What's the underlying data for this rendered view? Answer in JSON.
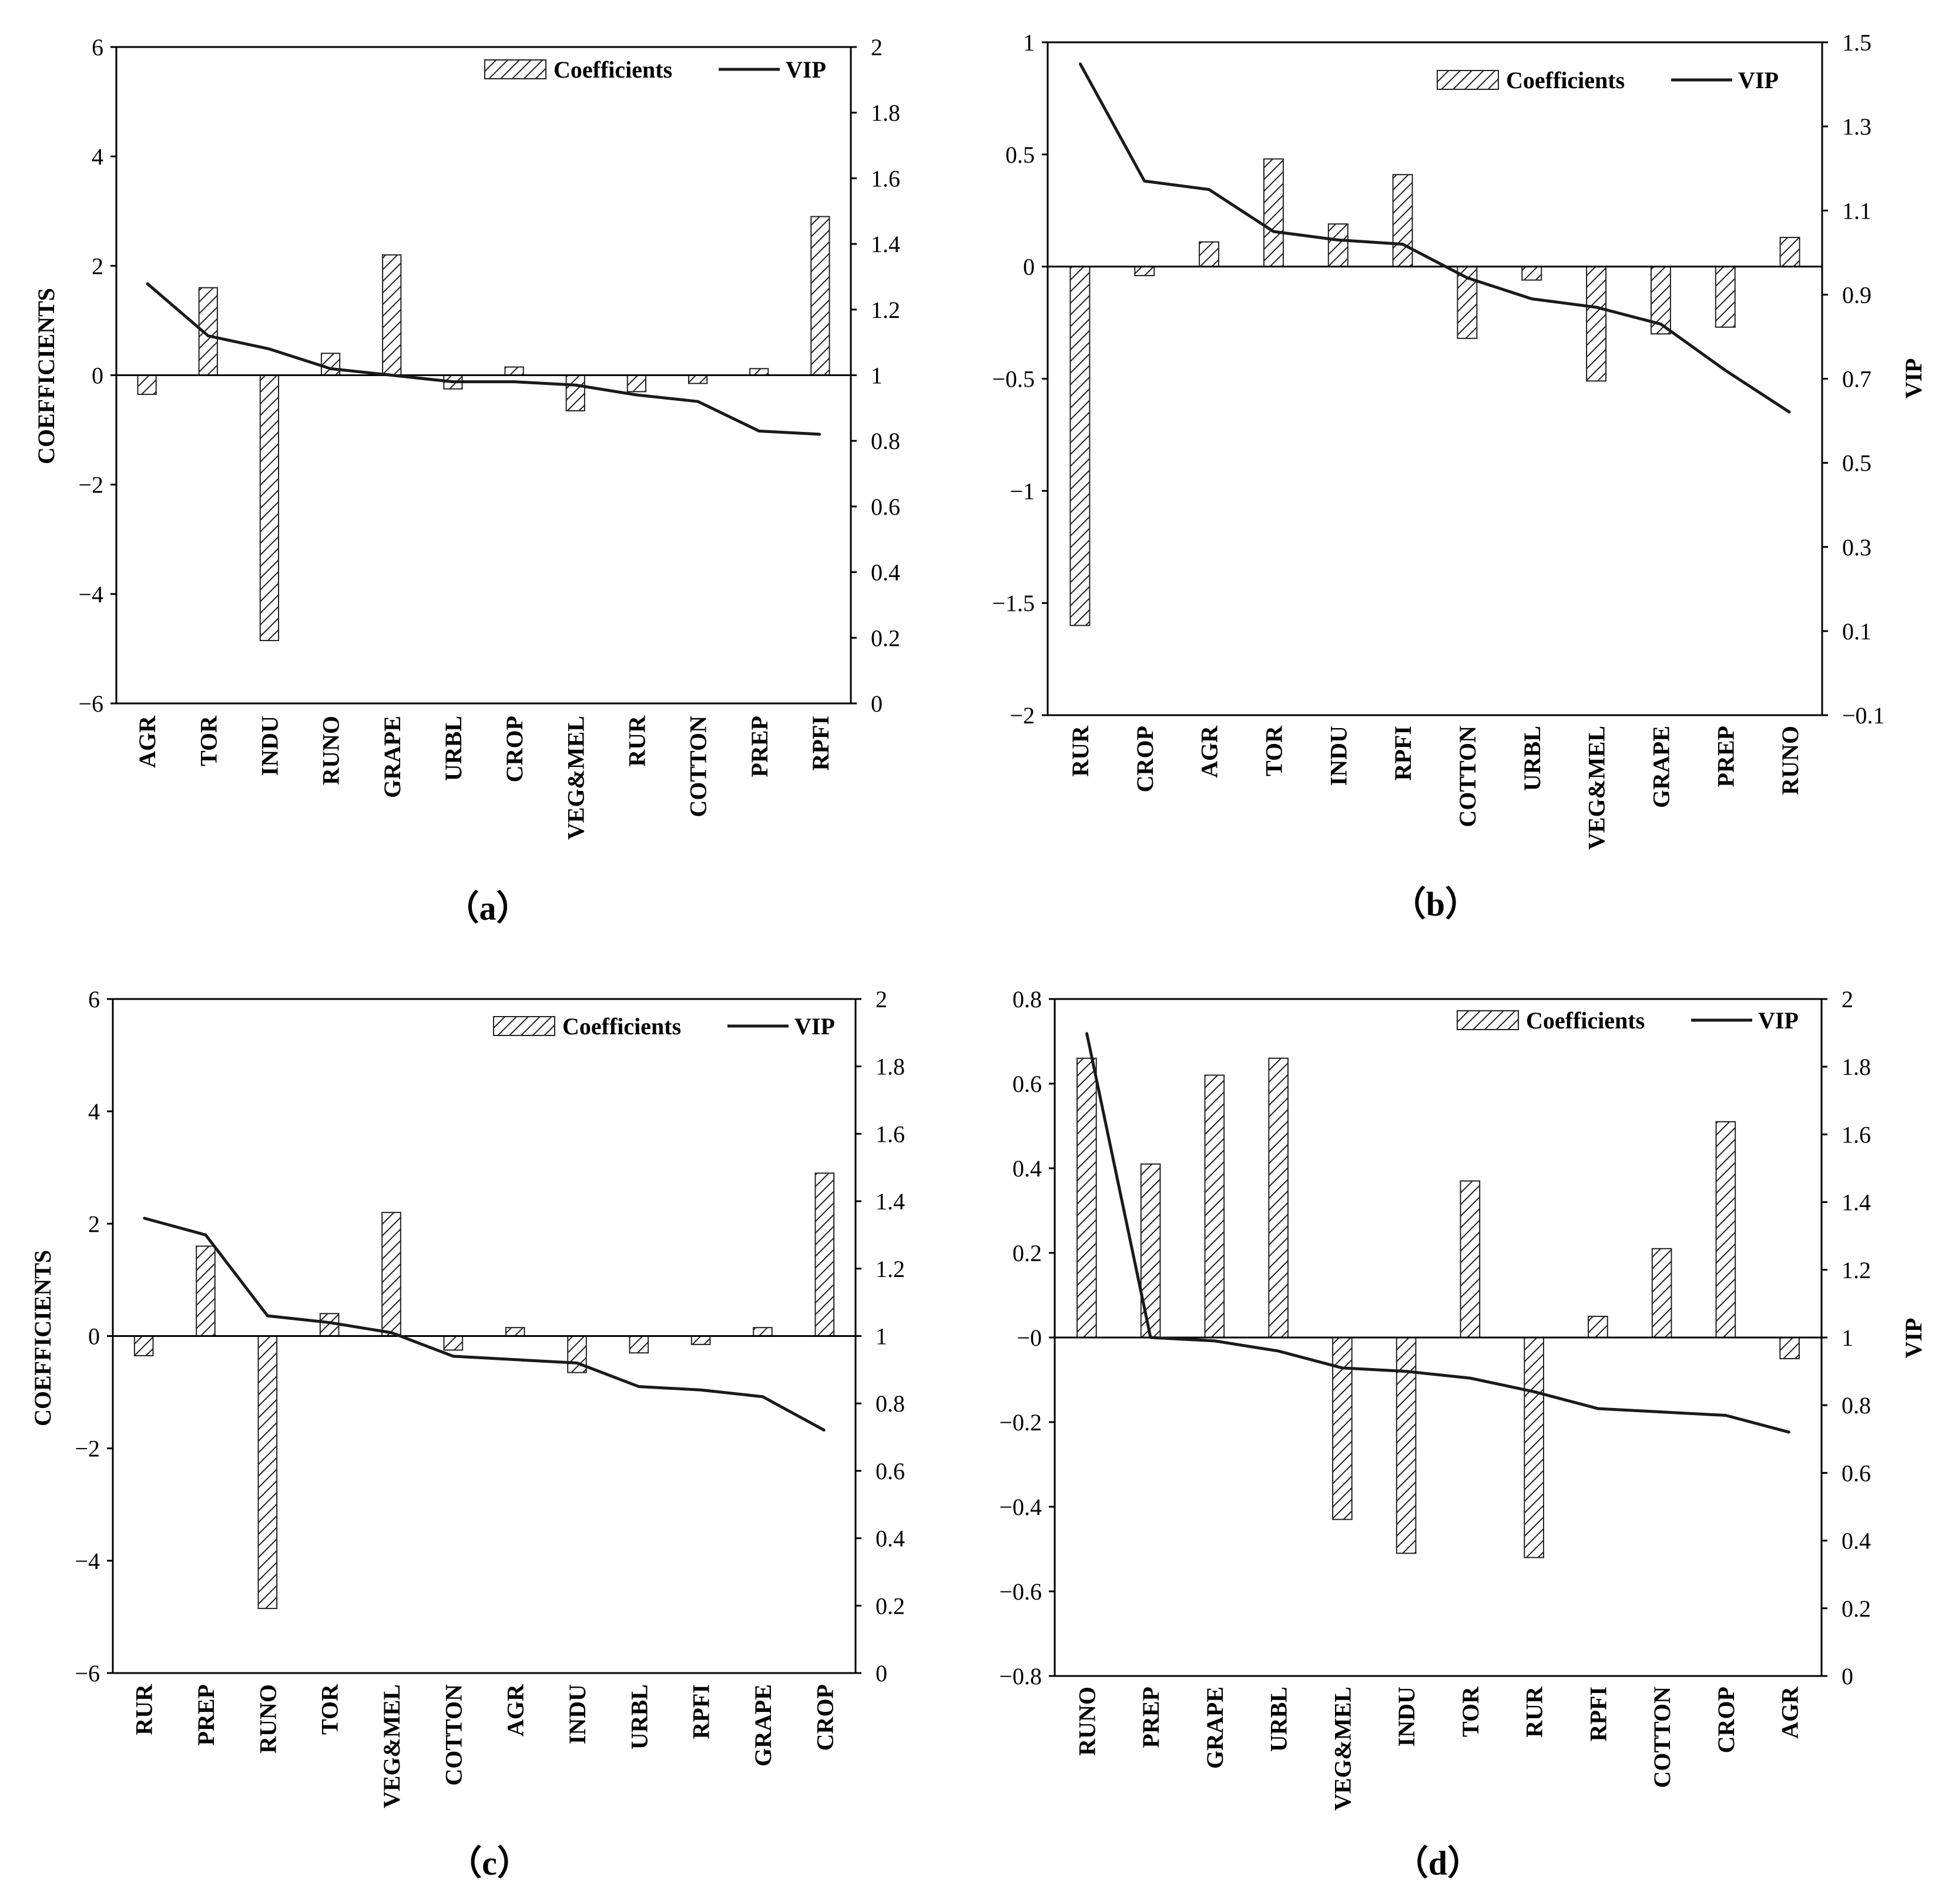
{
  "legend": {
    "coefficients": "Coefficients",
    "vip": "VIP"
  },
  "colors": {
    "bar_stroke": "#222222",
    "hatch": "#222222",
    "line": "#1a1a1a",
    "axis": "#000000"
  },
  "chart_data": [
    {
      "type": "bar+line",
      "panel_label": "（a）",
      "categories": [
        "AGR",
        "TOR",
        "INDU",
        "RUNO",
        "GRAPE",
        "URBL",
        "CROP",
        "VEG&MEL",
        "RUR",
        "COTTON",
        "PREP",
        "RPFI"
      ],
      "ylabel": "COEFFICIENTS",
      "y2label": "",
      "ylim": [
        -6,
        6
      ],
      "yticks": [
        -6,
        -4,
        -2,
        0,
        2,
        4,
        6
      ],
      "ytick_labels": [
        "−6",
        "−4",
        "−2",
        "0",
        "2",
        "4",
        "6"
      ],
      "y2lim": [
        0,
        2
      ],
      "y2ticks": [
        0,
        0.2,
        0.4,
        0.6,
        0.8,
        1,
        1.2,
        1.4,
        1.6,
        1.8,
        2
      ],
      "y2tick_labels": [
        "0",
        "0.2",
        "0.4",
        "0.6",
        "0.8",
        "1",
        "1.2",
        "1.4",
        "1.6",
        "1.8",
        "2"
      ],
      "series": [
        {
          "name": "Coefficients",
          "kind": "bar",
          "axis": "left",
          "values": [
            -0.35,
            1.6,
            -4.85,
            0.4,
            2.2,
            -0.25,
            0.15,
            -0.65,
            -0.3,
            -0.15,
            0.12,
            2.9
          ]
        },
        {
          "name": "VIP",
          "kind": "line",
          "axis": "right",
          "values": [
            1.28,
            1.12,
            1.08,
            1.02,
            1.0,
            0.98,
            0.98,
            0.97,
            0.94,
            0.92,
            0.83,
            0.82
          ]
        }
      ]
    },
    {
      "type": "bar+line",
      "panel_label": "（b）",
      "categories": [
        "RUR",
        "CROP",
        "AGR",
        "TOR",
        "INDU",
        "RPFI",
        "COTTON",
        "URBL",
        "VEG&MEL",
        "GRAPE",
        "PREP",
        "RUNO"
      ],
      "ylabel": "",
      "y2label": "VIP",
      "ylim": [
        -2,
        1
      ],
      "yticks": [
        -2,
        -1.5,
        -1,
        -0.5,
        0,
        0.5,
        1
      ],
      "ytick_labels": [
        "−2",
        "−1.5",
        "−1",
        "−0.5",
        "0",
        "0.5",
        "1"
      ],
      "y2lim": [
        -0.1,
        1.5
      ],
      "y2ticks": [
        -0.1,
        0.1,
        0.3,
        0.5,
        0.7,
        0.9,
        1.1,
        1.3,
        1.5
      ],
      "y2tick_labels": [
        "−0.1",
        "0.1",
        "0.3",
        "0.5",
        "0.7",
        "0.9",
        "1.1",
        "1.3",
        "1.5"
      ],
      "series": [
        {
          "name": "Coefficients",
          "kind": "bar",
          "axis": "left",
          "values": [
            -1.6,
            -0.04,
            0.11,
            0.48,
            0.19,
            0.41,
            -0.32,
            -0.06,
            -0.51,
            -0.3,
            -0.27,
            0.13
          ]
        },
        {
          "name": "VIP",
          "kind": "line",
          "axis": "right",
          "values": [
            1.45,
            1.17,
            1.15,
            1.05,
            1.03,
            1.02,
            0.94,
            0.89,
            0.87,
            0.83,
            0.72,
            0.62
          ]
        }
      ]
    },
    {
      "type": "bar+line",
      "panel_label": "（c）",
      "categories": [
        "RUR",
        "PREP",
        "RUNO",
        "TOR",
        "VEG&MEL",
        "COTTON",
        "AGR",
        "INDU",
        "URBL",
        "RPFI",
        "GRAPE",
        "CROP"
      ],
      "ylabel": "COEFFICIENTS",
      "y2label": "",
      "ylim": [
        -6,
        6
      ],
      "yticks": [
        -6,
        -4,
        -2,
        0,
        2,
        4,
        6
      ],
      "ytick_labels": [
        "−6",
        "−4",
        "−2",
        "0",
        "2",
        "4",
        "6"
      ],
      "y2lim": [
        0,
        2
      ],
      "y2ticks": [
        0,
        0.2,
        0.4,
        0.6,
        0.8,
        1,
        1.2,
        1.4,
        1.6,
        1.8,
        2
      ],
      "y2tick_labels": [
        "0",
        "0.2",
        "0.4",
        "0.6",
        "0.8",
        "1",
        "1.2",
        "1.4",
        "1.6",
        "1.8",
        "2"
      ],
      "series": [
        {
          "name": "Coefficients",
          "kind": "bar",
          "axis": "left",
          "values": [
            -0.35,
            1.6,
            -4.85,
            0.4,
            2.2,
            -0.25,
            0.15,
            -0.65,
            -0.3,
            -0.15,
            0.15,
            2.9
          ]
        },
        {
          "name": "VIP",
          "kind": "line",
          "axis": "right",
          "values": [
            1.35,
            1.3,
            1.06,
            1.04,
            1.01,
            0.94,
            0.93,
            0.92,
            0.85,
            0.84,
            0.82,
            0.72
          ]
        }
      ]
    },
    {
      "type": "bar+line",
      "panel_label": "（d）",
      "categories": [
        "RUNO",
        "PREP",
        "GRAPE",
        "URBL",
        "VEG&MEL",
        "INDU",
        "TOR",
        "RUR",
        "RPFI",
        "COTTON",
        "CROP",
        "AGR"
      ],
      "ylabel": "",
      "y2label": "VIP",
      "ylim": [
        -0.8,
        0.8
      ],
      "yticks": [
        -0.8,
        -0.6,
        -0.4,
        -0.2,
        0,
        0.2,
        0.4,
        0.6,
        0.8
      ],
      "ytick_labels": [
        "−0.8",
        "−0.6",
        "−0.4",
        "−0.2",
        "−0",
        "0.2",
        "0.4",
        "0.6",
        "0.8"
      ],
      "y2lim": [
        0,
        2
      ],
      "y2ticks": [
        0,
        0.2,
        0.4,
        0.6,
        0.8,
        1,
        1.2,
        1.4,
        1.6,
        1.8,
        2
      ],
      "y2tick_labels": [
        "0",
        "0.2",
        "0.4",
        "0.6",
        "0.8",
        "1",
        "1.2",
        "1.4",
        "1.6",
        "1.8",
        "2"
      ],
      "series": [
        {
          "name": "Coefficients",
          "kind": "bar",
          "axis": "left",
          "values": [
            0.66,
            0.41,
            0.62,
            0.66,
            -0.43,
            -0.51,
            0.37,
            -0.52,
            0.05,
            0.21,
            0.51,
            -0.05
          ]
        },
        {
          "name": "VIP",
          "kind": "line",
          "axis": "right",
          "values": [
            1.9,
            1.0,
            0.99,
            0.96,
            0.91,
            0.9,
            0.88,
            0.84,
            0.79,
            0.78,
            0.77,
            0.72
          ]
        }
      ]
    }
  ]
}
